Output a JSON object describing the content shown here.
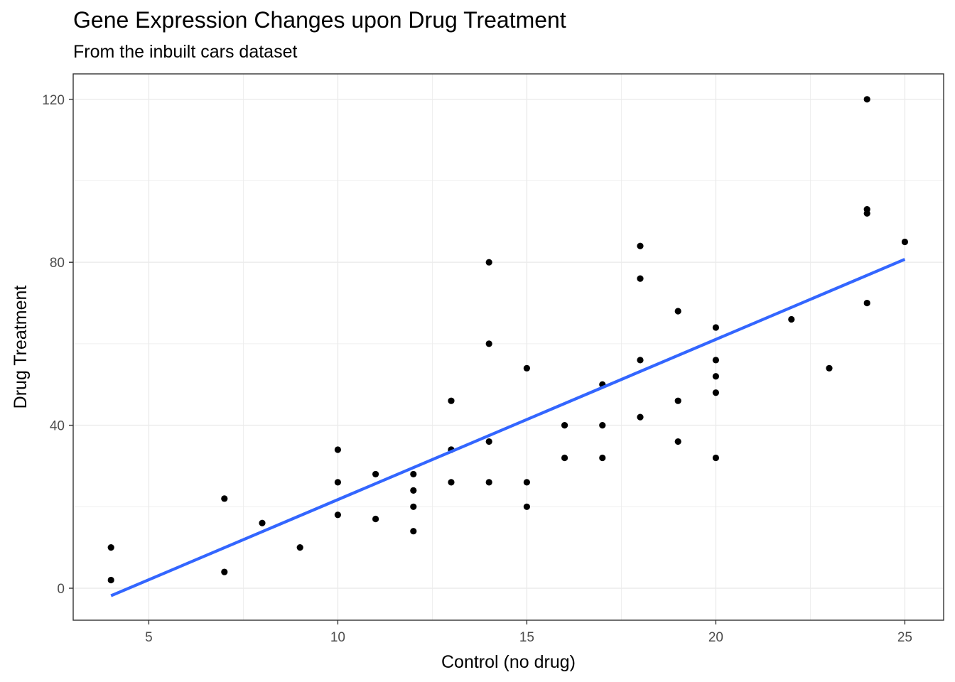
{
  "chart_data": {
    "type": "scatter",
    "title": "Gene Expression Changes upon Drug Treatment",
    "subtitle": "From the inbuilt cars dataset",
    "xlabel": "Control (no drug)",
    "ylabel": "Drug Treatment",
    "xlim": [
      3,
      26
    ],
    "ylim": [
      -8,
      126
    ],
    "x_ticks": [
      5,
      10,
      15,
      20,
      25
    ],
    "y_ticks": [
      0,
      40,
      80,
      120
    ],
    "grid": true,
    "legend": "none",
    "points": [
      [
        4,
        2
      ],
      [
        4,
        10
      ],
      [
        7,
        4
      ],
      [
        7,
        22
      ],
      [
        8,
        16
      ],
      [
        9,
        10
      ],
      [
        10,
        18
      ],
      [
        10,
        26
      ],
      [
        10,
        34
      ],
      [
        11,
        17
      ],
      [
        11,
        28
      ],
      [
        12,
        14
      ],
      [
        12,
        20
      ],
      [
        12,
        24
      ],
      [
        12,
        28
      ],
      [
        13,
        26
      ],
      [
        13,
        34
      ],
      [
        13,
        34
      ],
      [
        13,
        46
      ],
      [
        14,
        26
      ],
      [
        14,
        36
      ],
      [
        14,
        60
      ],
      [
        14,
        80
      ],
      [
        15,
        20
      ],
      [
        15,
        26
      ],
      [
        15,
        54
      ],
      [
        16,
        32
      ],
      [
        16,
        40
      ],
      [
        17,
        32
      ],
      [
        17,
        40
      ],
      [
        17,
        50
      ],
      [
        18,
        42
      ],
      [
        18,
        56
      ],
      [
        18,
        76
      ],
      [
        18,
        84
      ],
      [
        19,
        36
      ],
      [
        19,
        46
      ],
      [
        19,
        68
      ],
      [
        20,
        32
      ],
      [
        20,
        48
      ],
      [
        20,
        52
      ],
      [
        20,
        56
      ],
      [
        20,
        64
      ],
      [
        22,
        66
      ],
      [
        23,
        54
      ],
      [
        24,
        70
      ],
      [
        24,
        92
      ],
      [
        24,
        93
      ],
      [
        24,
        120
      ],
      [
        25,
        85
      ]
    ],
    "trend_line": {
      "method": "linear",
      "color": "#3366ff",
      "start": [
        4,
        -1.85
      ],
      "end": [
        25,
        80.73
      ]
    },
    "point_color": "#000000",
    "gridline_color": "#ebebeb"
  }
}
